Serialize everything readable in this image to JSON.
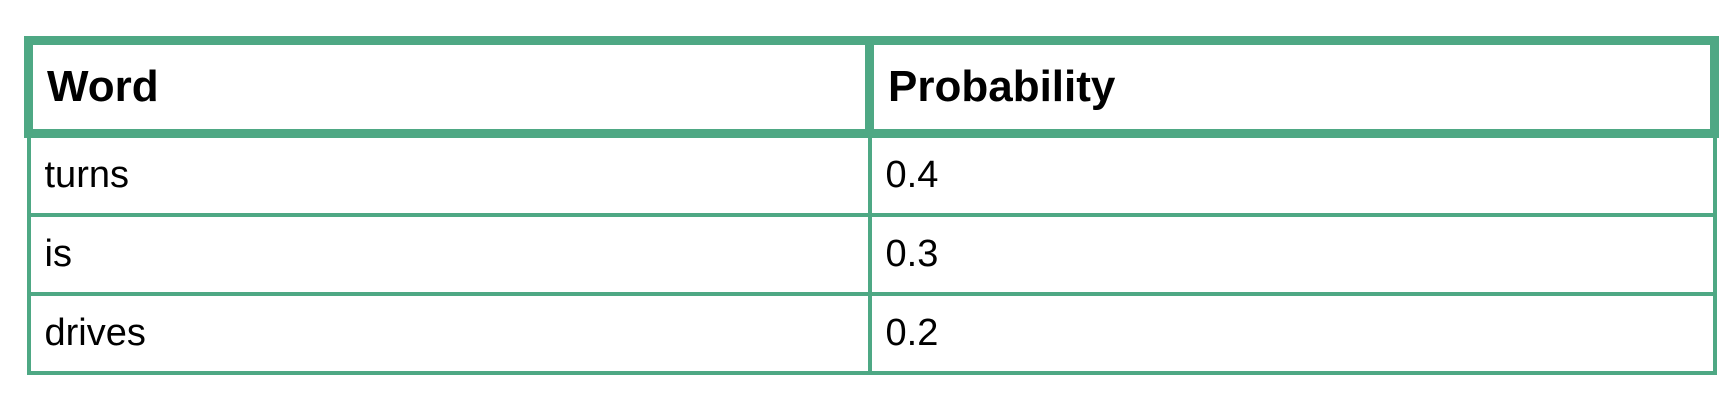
{
  "table": {
    "columns": [
      "Word",
      "Probability"
    ],
    "rows": [
      {
        "word": "turns",
        "probability": "0.4"
      },
      {
        "word": "is",
        "probability": "0.3"
      },
      {
        "word": "drives",
        "probability": "0.2"
      }
    ]
  },
  "colors": {
    "border": "#4ea884",
    "text": "#000000",
    "background": "#ffffff"
  }
}
